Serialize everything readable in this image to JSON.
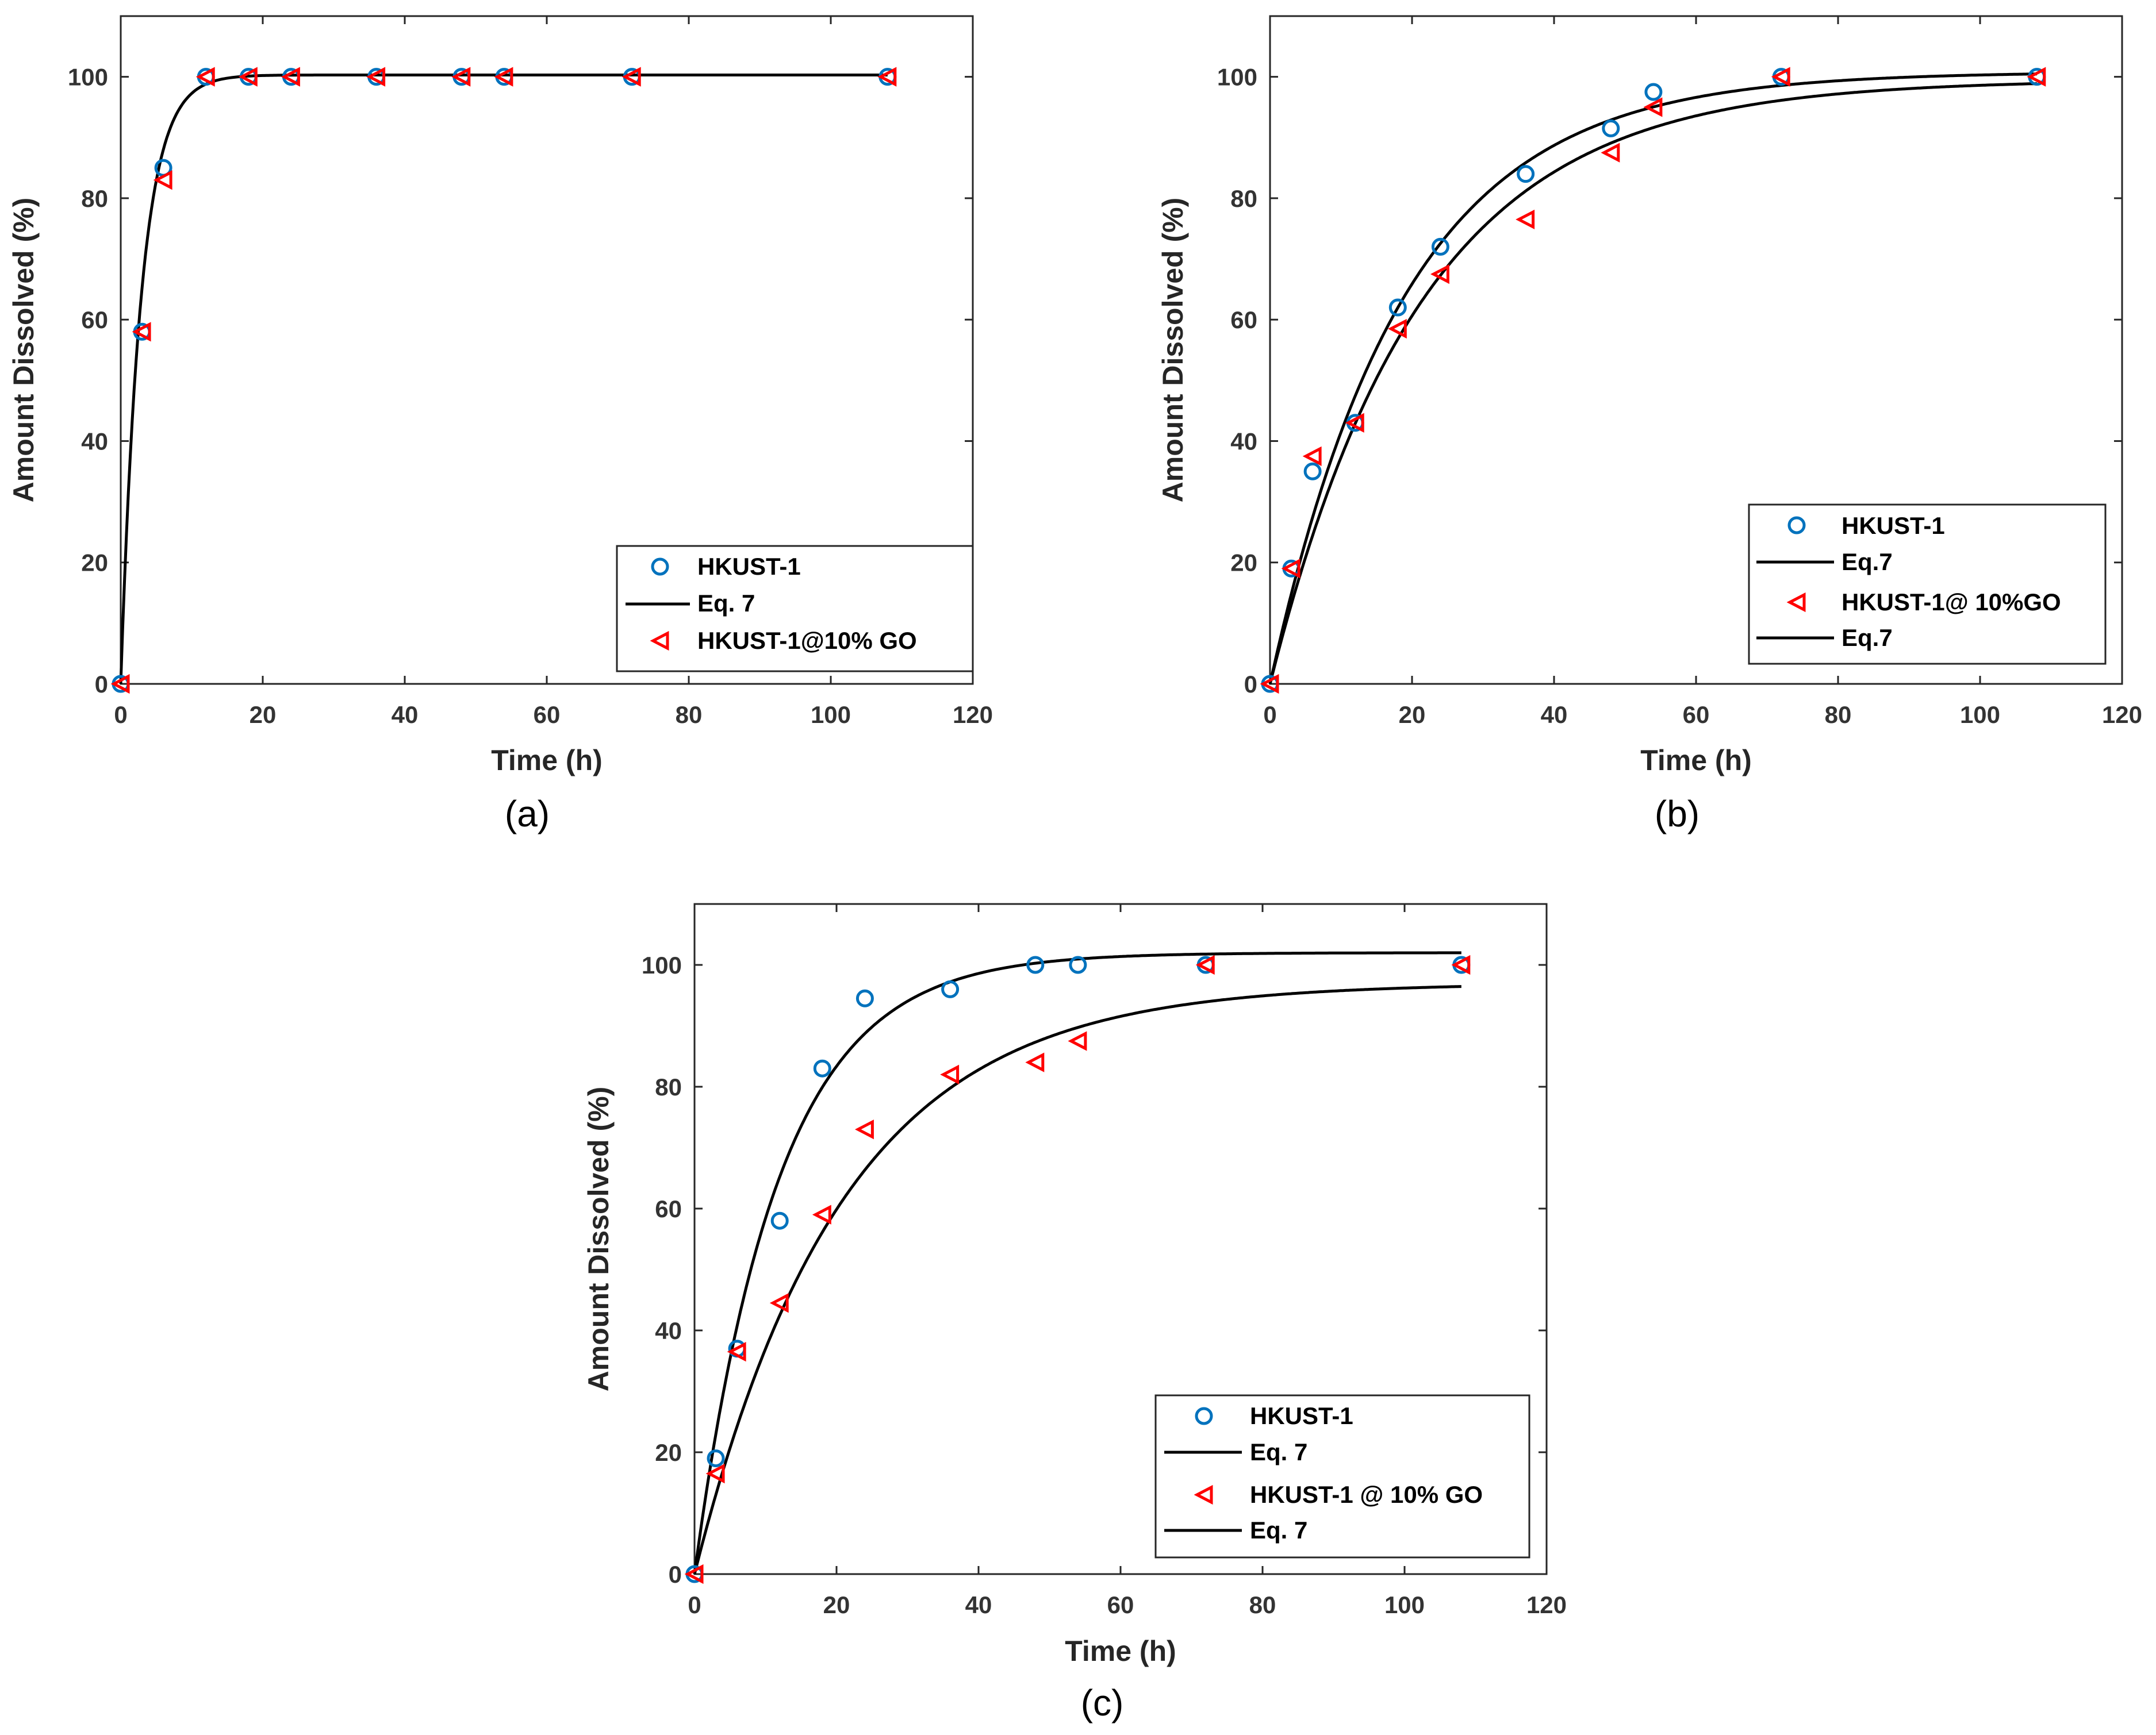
{
  "colors": {
    "hkust_marker": "#0072BD",
    "go_marker": "#FF0000",
    "fit_line": "#000000",
    "axes": "#262626"
  },
  "icons": {
    "hkust": "circle-marker-icon",
    "go": "left-triangle-marker-icon",
    "fit": "line-sample-icon"
  },
  "chart_data": [
    {
      "type": "scatter",
      "panel_label": "(a)",
      "xlabel": "Time (h)",
      "ylabel": "Amount Dissolved (%)",
      "xlim": [
        0,
        120
      ],
      "ylim": [
        0,
        110
      ],
      "xticks": [
        0,
        20,
        40,
        60,
        80,
        100,
        120
      ],
      "yticks": [
        0,
        20,
        40,
        60,
        80,
        100
      ],
      "legend_position": "bottom-right",
      "legend": [
        "HKUST-1",
        "Eq. 7",
        "HKUST-1@10% GO"
      ],
      "series": [
        {
          "name": "HKUST-1",
          "kind": "circle",
          "x": [
            0,
            3,
            6,
            12,
            18,
            24,
            36,
            48,
            54,
            72,
            108
          ],
          "y": [
            0,
            58,
            85,
            100,
            100,
            100,
            100,
            100,
            100,
            100,
            100
          ]
        },
        {
          "name": "HKUST-1@10% GO",
          "kind": "triangle",
          "x": [
            0,
            3,
            6,
            12,
            18,
            24,
            36,
            48,
            54,
            72,
            108
          ],
          "y": [
            0,
            58,
            83,
            100,
            100,
            100,
            100,
            100,
            100,
            100,
            100
          ]
        }
      ],
      "fits": [
        {
          "name": "Eq. 7",
          "a": 100.3,
          "k": 0.35,
          "xmax": 108
        }
      ]
    },
    {
      "type": "scatter",
      "panel_label": "(b)",
      "xlabel": "Time (h)",
      "ylabel": "Amount Dissolved (%)",
      "xlim": [
        0,
        120
      ],
      "ylim": [
        0,
        110
      ],
      "xticks": [
        0,
        20,
        40,
        60,
        80,
        100,
        120
      ],
      "yticks": [
        0,
        20,
        40,
        60,
        80,
        100
      ],
      "legend_position": "bottom-right",
      "legend": [
        "HKUST-1",
        "Eq.7",
        "HKUST-1@ 10%GO",
        "Eq.7"
      ],
      "series": [
        {
          "name": "HKUST-1",
          "kind": "circle",
          "x": [
            0,
            3,
            6,
            12,
            18,
            24,
            36,
            48,
            54,
            72,
            108
          ],
          "y": [
            0,
            19,
            35,
            43,
            62,
            72,
            84,
            91.5,
            97.5,
            100,
            100
          ]
        },
        {
          "name": "HKUST-1@ 10%GO",
          "kind": "triangle",
          "x": [
            0,
            3,
            6,
            12,
            18,
            24,
            36,
            48,
            54,
            72,
            108
          ],
          "y": [
            0,
            19,
            37.5,
            43,
            58.5,
            67.5,
            76.5,
            87.5,
            95,
            100,
            100
          ]
        }
      ],
      "fits": [
        {
          "name": "Eq.7",
          "a": 100.8,
          "k": 0.053,
          "xmax": 108
        },
        {
          "name": "Eq.7",
          "a": 99.5,
          "k": 0.047,
          "xmax": 108
        }
      ]
    },
    {
      "type": "scatter",
      "panel_label": "(c)",
      "xlabel": "Time (h)",
      "ylabel": "Amount Dissolved (%)",
      "xlim": [
        0,
        120
      ],
      "ylim": [
        0,
        110
      ],
      "xticks": [
        0,
        20,
        40,
        60,
        80,
        100,
        120
      ],
      "yticks": [
        0,
        20,
        40,
        60,
        80,
        100
      ],
      "legend_position": "bottom-right",
      "legend": [
        "HKUST-1",
        "Eq. 7",
        "HKUST-1 @ 10% GO",
        "Eq. 7"
      ],
      "series": [
        {
          "name": "HKUST-1",
          "kind": "circle",
          "x": [
            0,
            3,
            6,
            12,
            18,
            24,
            36,
            48,
            54,
            72,
            108
          ],
          "y": [
            0,
            19,
            37,
            58,
            83,
            94.5,
            96,
            100,
            100,
            100,
            100
          ]
        },
        {
          "name": "HKUST-1 @ 10% GO",
          "kind": "triangle",
          "x": [
            0,
            3,
            6,
            12,
            18,
            24,
            36,
            48,
            54,
            72,
            108
          ],
          "y": [
            0,
            16.5,
            36.5,
            44.5,
            59,
            73,
            82,
            84,
            87.5,
            100,
            100
          ]
        }
      ],
      "fits": [
        {
          "name": "Eq. 7",
          "a": 102,
          "k": 0.085,
          "xmax": 108
        },
        {
          "name": "Eq. 7",
          "a": 97,
          "k": 0.048,
          "xmax": 108
        }
      ]
    }
  ]
}
